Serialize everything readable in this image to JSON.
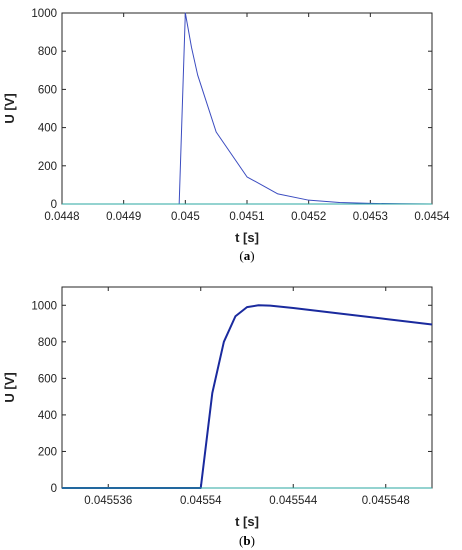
{
  "chart_data": [
    {
      "type": "line",
      "panel_label": "a",
      "xlabel": "t [s]",
      "ylabel": "U [V]",
      "xlim": [
        0.0448,
        0.0454
      ],
      "ylim": [
        0,
        1000
      ],
      "xticks": [
        "0.0448",
        "0.0449",
        "0.045",
        "0.0451",
        "0.0452",
        "0.0453",
        "0.0454"
      ],
      "yticks": [
        "0",
        "200",
        "400",
        "600",
        "800",
        "1000"
      ],
      "grid": false,
      "legend": "none",
      "series": [
        {
          "color": "#3b4cc0",
          "description_points": {
            "x": [
              0.0448,
              0.0449,
              0.04499,
              0.045,
              0.04501,
              0.04502,
              0.04505,
              0.0451,
              0.04515,
              0.0452,
              0.04525,
              0.0453,
              0.04535,
              0.0454
            ],
            "y": [
              0,
              0,
              0,
              1000,
              820,
              675,
              377,
              142,
              53,
              20,
              8,
              3,
              1,
              0
            ]
          }
        },
        {
          "color": "#2aa7a0",
          "description_points": {
            "x": [
              0.0448,
              0.0454
            ],
            "y": [
              0,
              0
            ]
          }
        }
      ]
    },
    {
      "type": "line",
      "panel_label": "b",
      "xlabel": "t [s]",
      "ylabel": "U [V]",
      "xlim": [
        0.045534,
        0.04555
      ],
      "ylim": [
        0,
        1100
      ],
      "xticks": [
        "0.045536",
        "0.04554",
        "0.045544",
        "0.045548"
      ],
      "yticks": [
        "0",
        "200",
        "400",
        "600",
        "800",
        "1000"
      ],
      "grid": false,
      "legend": "none",
      "series": [
        {
          "color": "#1a2a9e",
          "description_points": {
            "x": [
              0.045534,
              0.0455395,
              0.04554,
              0.0455405,
              0.045541,
              0.0455415,
              0.045542,
              0.0455425,
              0.045543,
              0.045544,
              0.045546,
              0.045548,
              0.04555
            ],
            "y": [
              0,
              0,
              0,
              520,
              800,
              940,
              990,
              1000,
              998,
              985,
              955,
              925,
              895
            ]
          }
        },
        {
          "color": "#2aa7a0",
          "description_points": {
            "x": [
              0.045534,
              0.04555
            ],
            "y": [
              0,
              0
            ]
          }
        }
      ]
    }
  ]
}
